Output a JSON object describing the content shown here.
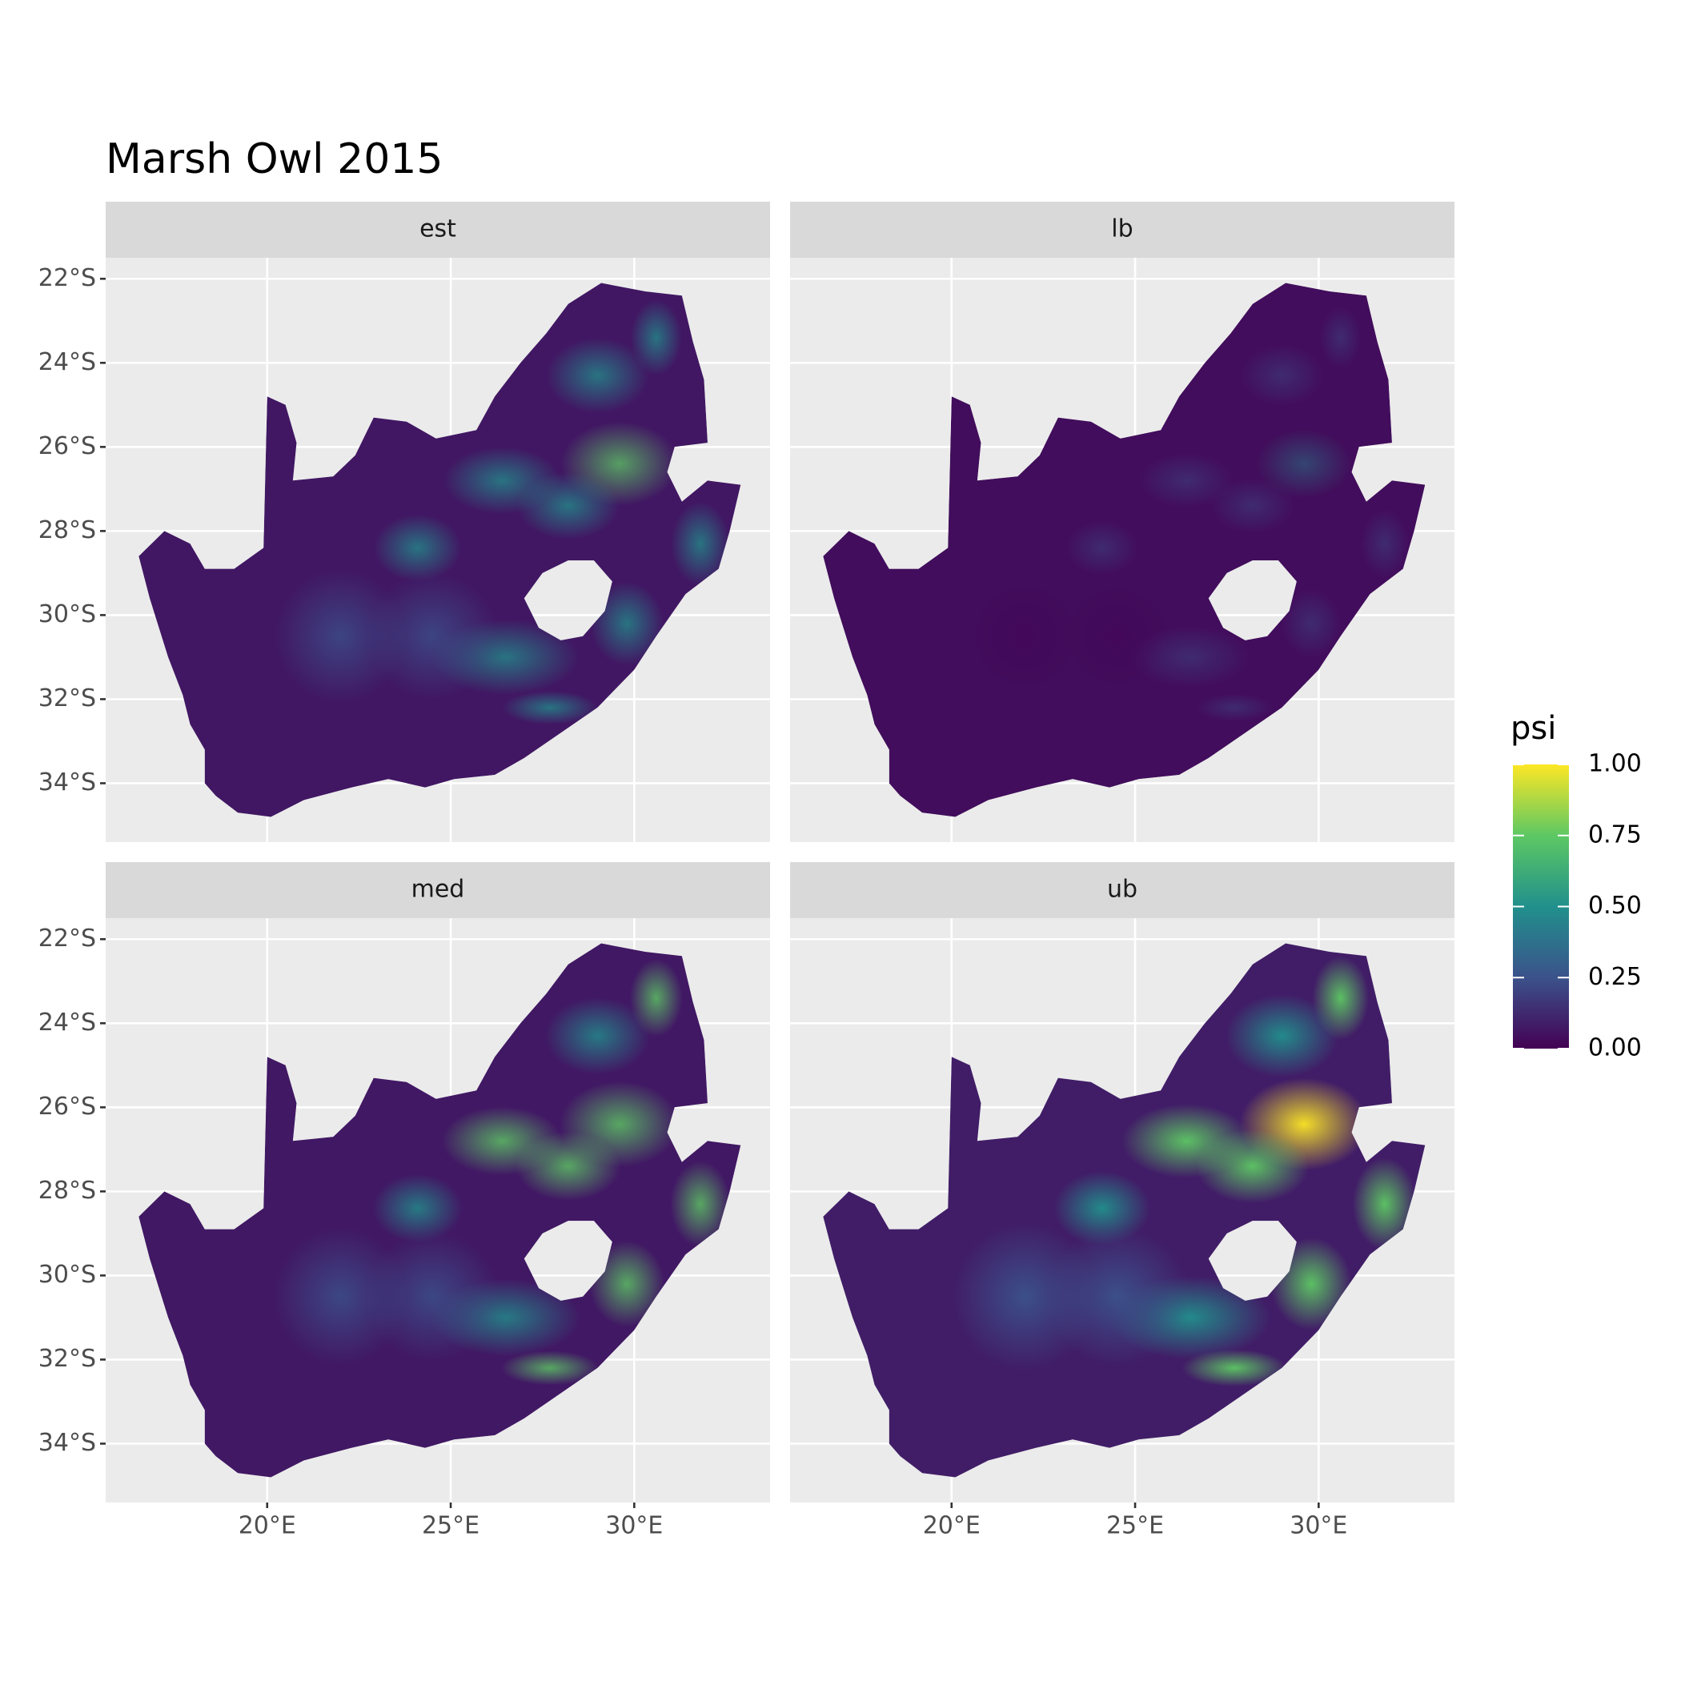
{
  "chart_data": {
    "type": "raster-map",
    "title": "Marsh Owl 2015",
    "facets": [
      "est",
      "lb",
      "med",
      "ub"
    ],
    "xlim": [
      15.6,
      33.7
    ],
    "xticks": [
      {
        "value": 20,
        "label": "20°E"
      },
      {
        "value": 25,
        "label": "25°E"
      },
      {
        "value": 30,
        "label": "30°E"
      }
    ],
    "ylim": [
      -35.4,
      -21.5
    ],
    "yticks": [
      {
        "value": -22,
        "label": "22°S"
      },
      {
        "value": -24,
        "label": "24°S"
      },
      {
        "value": -26,
        "label": "26°S"
      },
      {
        "value": -28,
        "label": "28°S"
      },
      {
        "value": -30,
        "label": "30°S"
      },
      {
        "value": -32,
        "label": "32°S"
      },
      {
        "value": -34,
        "label": "34°S"
      }
    ],
    "grid": true,
    "legend": {
      "title": "psi",
      "lim": [
        0,
        1
      ],
      "ticks": [
        {
          "value": 0,
          "label": "0.00"
        },
        {
          "value": 0.25,
          "label": "0.25"
        },
        {
          "value": 0.5,
          "label": "0.50"
        },
        {
          "value": 0.75,
          "label": "0.75"
        },
        {
          "value": 1,
          "label": "1.00"
        }
      ],
      "colors": [
        "#440154",
        "#3b528b",
        "#21908c",
        "#5dc863",
        "#fde725"
      ]
    }
  }
}
